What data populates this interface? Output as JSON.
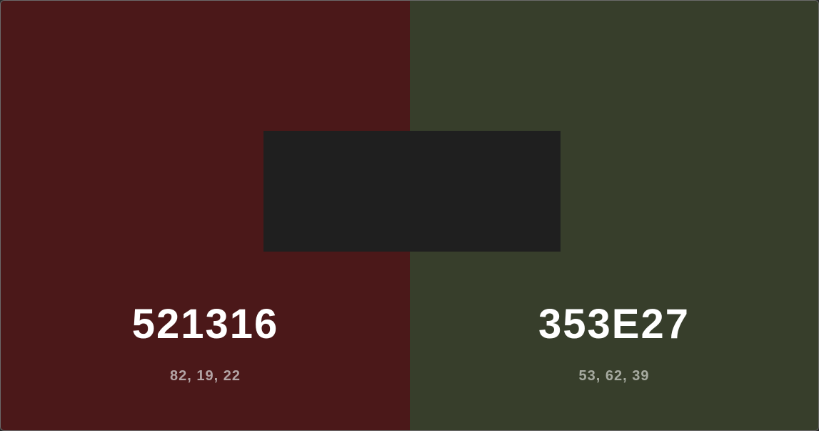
{
  "swatches": [
    {
      "hex": "521316",
      "rgb": "82, 19, 22",
      "color": "#4b1819",
      "rgb_text_color": "#b3a4a5"
    },
    {
      "hex": "353E27",
      "rgb": "53, 62, 39",
      "color": "#373e2b",
      "rgb_text_color": "#a6aaa0"
    }
  ],
  "center_overlay": {
    "color": "#1f1f1f"
  }
}
